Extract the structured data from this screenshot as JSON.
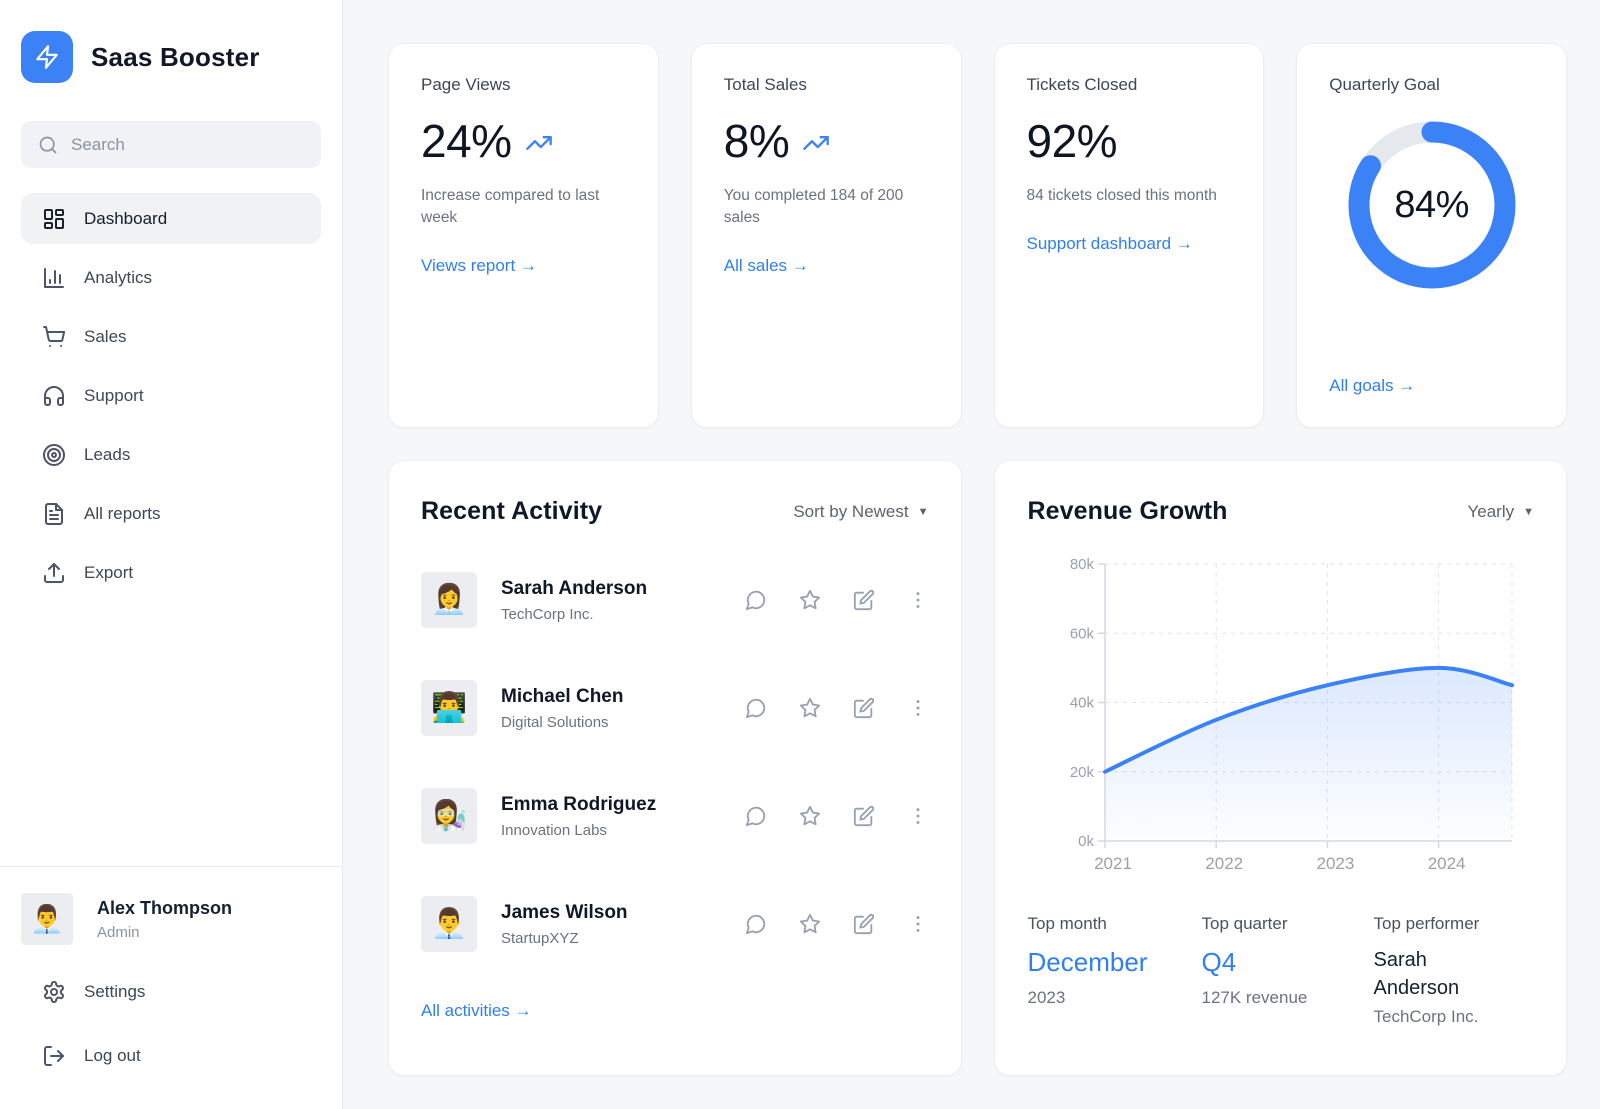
{
  "colors": {
    "accent": "#3b82f6",
    "link_blue": "#2f7ff2",
    "donut_track": "#e5e8ec",
    "chart_line": "#3b82f6",
    "sidebar_bg": "#ffffff",
    "main_bg": "#f6f7f9"
  },
  "icons": {
    "dropdown_arrow": "▼"
  },
  "app": {
    "title": "Saas Booster"
  },
  "sidebar": {
    "search": {
      "placeholder": "Search"
    },
    "items": [
      {
        "label": "Dashboard",
        "active": true
      },
      {
        "label": "Analytics",
        "active": false
      },
      {
        "label": "Sales",
        "active": false
      },
      {
        "label": "Support",
        "active": false
      },
      {
        "label": "Leads",
        "active": false
      },
      {
        "label": "All reports",
        "active": false
      },
      {
        "label": "Export",
        "active": false
      }
    ],
    "user": {
      "name": "Alex Thompson",
      "role": "Admin",
      "avatar": "👨‍💼"
    },
    "footer": [
      {
        "label": "Settings"
      },
      {
        "label": "Log out"
      }
    ]
  },
  "stat_cards": [
    {
      "title": "Page Views",
      "value": "24%",
      "description": "Increase compared to last week",
      "link": "Views report →",
      "trend_up": true
    },
    {
      "title": "Total Sales",
      "value": "8%",
      "description": "You completed 184 of 200 sales",
      "link": "All sales →",
      "trend_up": true
    },
    {
      "title": "Tickets Closed",
      "value": "92%",
      "description": "84 tickets closed this month",
      "link": "Support dashboard →",
      "trend_up": false
    }
  ],
  "goal_card": {
    "title": "Quarterly Goal",
    "percent": 84,
    "percent_label": "84%",
    "link": "All goals →"
  },
  "activity": {
    "title": "Recent Activity",
    "sort_label": "Sort by Newest",
    "link": "All activities →",
    "rows": [
      {
        "name": "Sarah Anderson",
        "company": "TechCorp Inc.",
        "avatar": "👩‍💼"
      },
      {
        "name": "Michael Chen",
        "company": "Digital Solutions",
        "avatar": "👨‍💻"
      },
      {
        "name": "Emma Rodriguez",
        "company": "Innovation Labs",
        "avatar": "👩‍🔬"
      },
      {
        "name": "James Wilson",
        "company": "StartupXYZ",
        "avatar": "👨‍💼"
      }
    ]
  },
  "revenue": {
    "title": "Revenue Growth",
    "period_label": "Yearly",
    "stats": [
      {
        "label": "Top month",
        "value": "December",
        "sub": "2023"
      },
      {
        "label": "Top quarter",
        "value": "Q4",
        "sub": "127K revenue"
      },
      {
        "label": "Top performer",
        "value": "Sarah Anderson",
        "sub": "TechCorp Inc."
      }
    ]
  },
  "chart_data": {
    "type": "area",
    "title": "Revenue Growth",
    "series_name": "Revenue",
    "x": [
      2021,
      2022,
      2023,
      2024,
      2024.66
    ],
    "values": [
      20000,
      35000,
      45000,
      50000,
      45000
    ],
    "xticks": [
      2021,
      2022,
      2023,
      2024
    ],
    "yticks": [
      0,
      20000,
      40000,
      60000,
      80000
    ],
    "ytick_labels": [
      "0k",
      "20k",
      "40k",
      "60k",
      "80k"
    ],
    "xlim": [
      2021,
      2024.66
    ],
    "ylim": [
      0,
      80000
    ],
    "grid": "dashed",
    "legend": false,
    "line_color": "#3b82f6"
  }
}
